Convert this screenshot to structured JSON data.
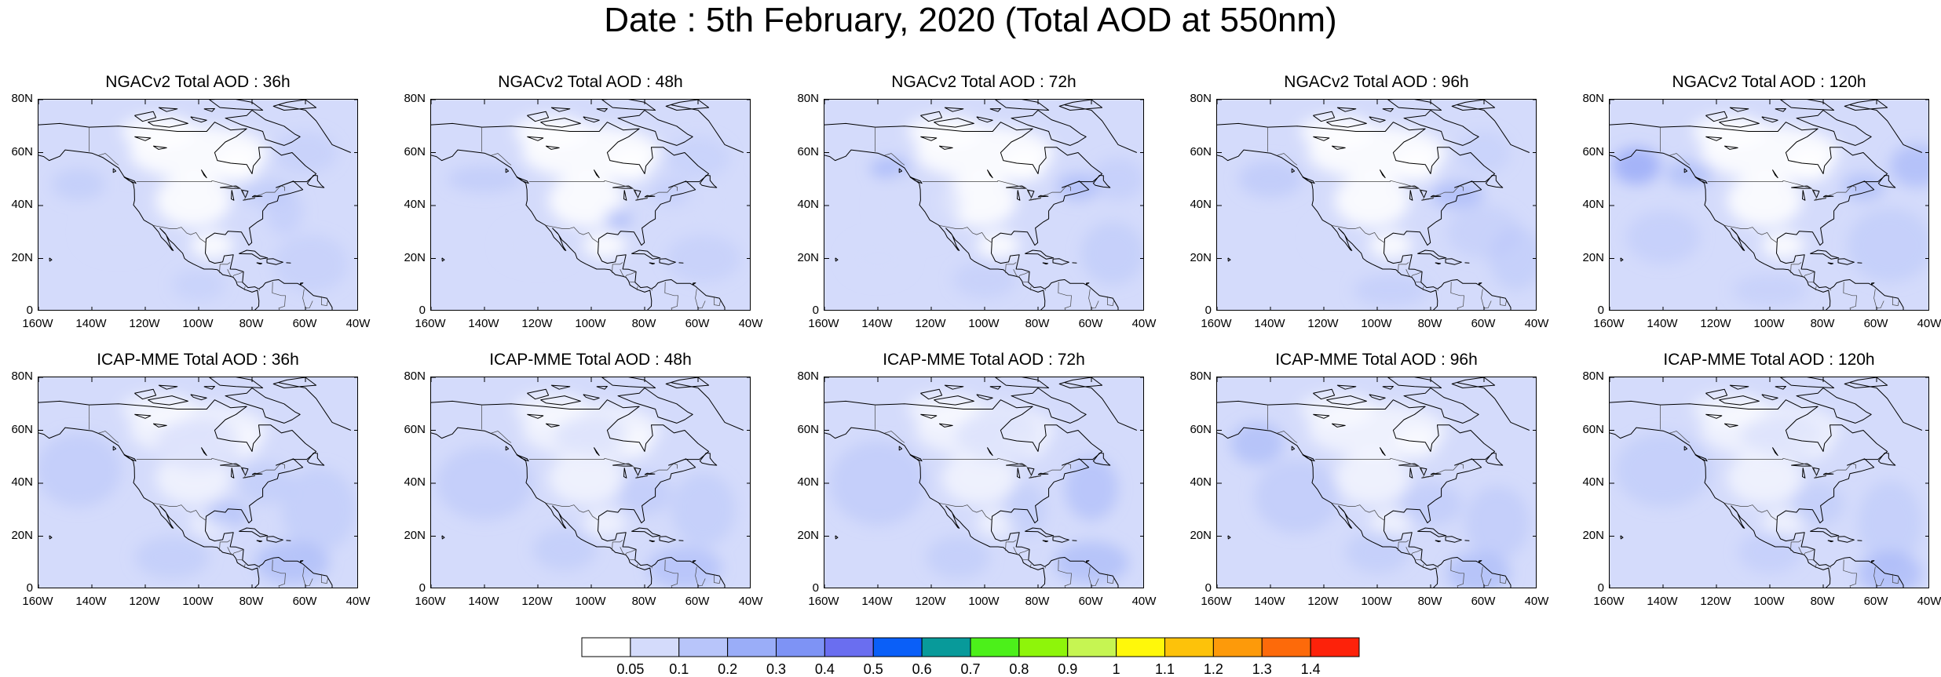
{
  "title": "Date : 5th February, 2020 (Total AOD at 550nm)",
  "lat_ticks": [
    "80N",
    "60N",
    "40N",
    "20N",
    "0"
  ],
  "lon_ticks": [
    "160W",
    "140W",
    "120W",
    "100W",
    "80W",
    "60W",
    "40W"
  ],
  "panels": [
    {
      "title": "NGACv2 Total AOD : 36h"
    },
    {
      "title": "NGACv2 Total AOD : 48h"
    },
    {
      "title": "NGACv2 Total AOD : 72h"
    },
    {
      "title": "NGACv2 Total AOD : 96h"
    },
    {
      "title": "NGACv2 Total AOD : 120h"
    },
    {
      "title": "ICAP-MME Total AOD : 36h"
    },
    {
      "title": "ICAP-MME Total AOD : 48h"
    },
    {
      "title": "ICAP-MME Total AOD : 72h"
    },
    {
      "title": "ICAP-MME Total AOD : 96h"
    },
    {
      "title": "ICAP-MME Total AOD : 120h"
    }
  ],
  "colorbar": {
    "colors": [
      "#ffffff",
      "#d4dbfb",
      "#b8c5fa",
      "#9aadf8",
      "#7e93f5",
      "#6a6ef0",
      "#0a5ff8",
      "#089a9a",
      "#4cf01a",
      "#8ef50a",
      "#c6f552",
      "#fff80a",
      "#fdc20a",
      "#fd9a0a",
      "#fd6a0a",
      "#fd220a"
    ],
    "labels": [
      "0.05",
      "0.1",
      "0.2",
      "0.3",
      "0.4",
      "0.5",
      "0.6",
      "0.7",
      "0.8",
      "0.9",
      "1",
      "1.1",
      "1.2",
      "1.3",
      "1.4"
    ]
  }
}
